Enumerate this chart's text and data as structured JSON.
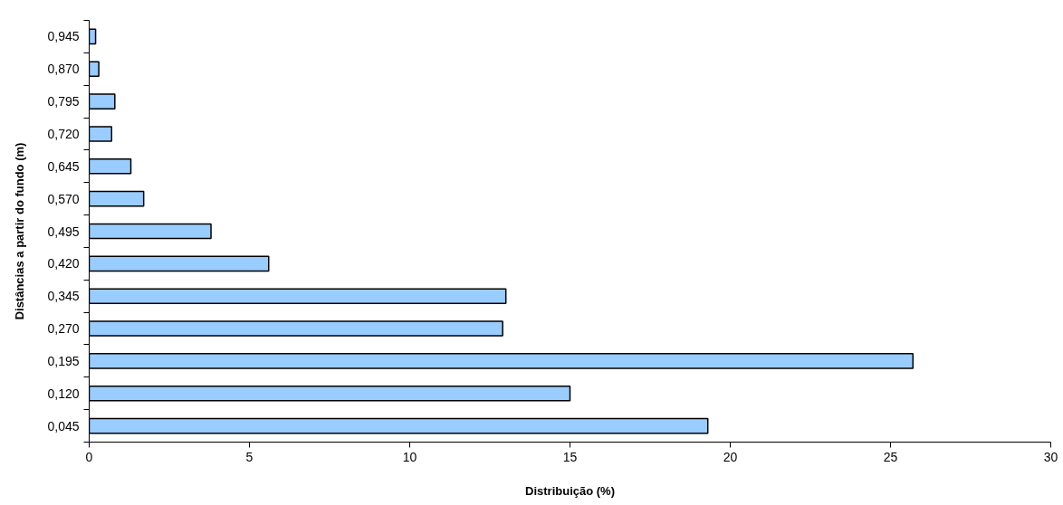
{
  "chart_data": {
    "type": "bar",
    "orientation": "horizontal",
    "xlabel": "Distribuição (%)",
    "ylabel": "Distâncias a partir do fundo (m)",
    "categories": [
      "0,945",
      "0,870",
      "0,795",
      "0,720",
      "0,645",
      "0,570",
      "0,495",
      "0,420",
      "0,345",
      "0,270",
      "0,195",
      "0,120",
      "0,045"
    ],
    "values": [
      0.2,
      0.3,
      0.8,
      0.7,
      1.3,
      1.7,
      3.8,
      5.6,
      13.0,
      12.9,
      25.7,
      15.0,
      19.3
    ],
    "color": "#99ccff",
    "xlim": [
      0,
      30
    ],
    "xticks": [
      0,
      5,
      10,
      15,
      20,
      25,
      30
    ]
  }
}
